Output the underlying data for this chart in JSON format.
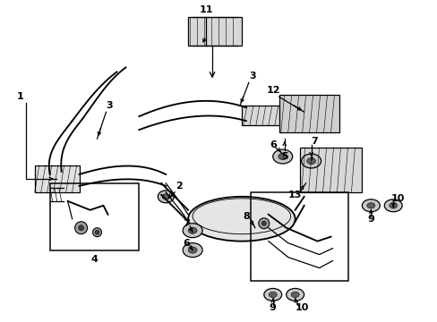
{
  "bg_color": "#ffffff",
  "line_color": "#000000",
  "gray_fill": "#cccccc",
  "dark_gray": "#888888",
  "light_gray": "#dddddd"
}
